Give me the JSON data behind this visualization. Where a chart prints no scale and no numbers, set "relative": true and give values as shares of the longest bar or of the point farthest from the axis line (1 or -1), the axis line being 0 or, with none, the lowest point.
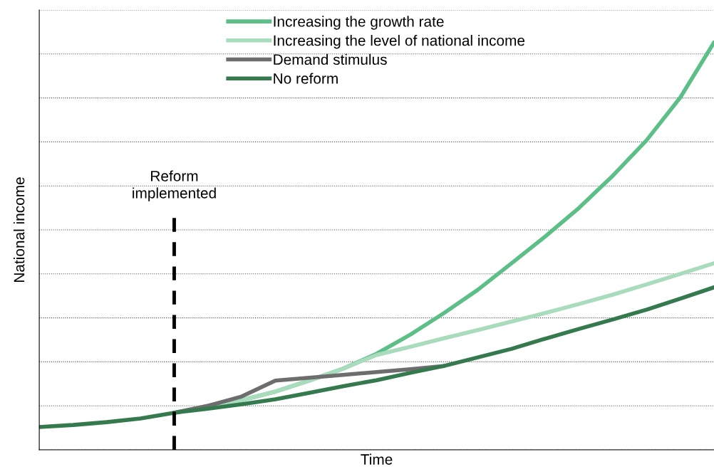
{
  "chart_data": {
    "type": "line",
    "relative": true,
    "xlabel": "Time",
    "ylabel": "National income",
    "categories": [
      null,
      null,
      null,
      null,
      null,
      null,
      null,
      null,
      null,
      null,
      null,
      null,
      null,
      null,
      null,
      null,
      null,
      null,
      null,
      null,
      null
    ],
    "series": [
      {
        "name": "Increasing the growth rate",
        "color": "#5dbf88",
        "values": [
          null,
          null,
          null,
          null,
          0.091,
          0.108,
          0.122,
          0.143,
          0.17,
          0.199,
          0.236,
          0.283,
          0.336,
          0.393,
          0.458,
          0.524,
          0.594,
          0.673,
          0.76,
          0.865,
          1
        ]
      },
      {
        "name": "Increasing the level of national income",
        "color": "#a8dcbc",
        "values": [
          null,
          null,
          null,
          null,
          0.091,
          0.108,
          0.122,
          0.143,
          0.17,
          0.199,
          0.233,
          0.253,
          0.274,
          0.294,
          0.315,
          0.336,
          0.358,
          0.381,
          0.406,
          0.432,
          0.458
        ]
      },
      {
        "name": "Demand stimulus",
        "color": "#6d6d6d",
        "values": [
          null,
          null,
          null,
          null,
          0.091,
          0.108,
          0.131,
          0.17,
          0.177,
          0.184,
          0.191,
          0.198,
          0.206,
          null,
          null,
          null,
          null,
          null,
          null,
          null,
          null
        ]
      },
      {
        "name": "No reform",
        "color": "#357a4f",
        "values": [
          0.056,
          0.061,
          0.068,
          0.077,
          0.091,
          0.101,
          0.112,
          0.124,
          0.14,
          0.156,
          0.171,
          0.189,
          0.206,
          0.227,
          0.248,
          0.273,
          0.297,
          0.32,
          0.344,
          0.371,
          0.399
        ]
      }
    ],
    "annotations": [
      "Reform implemented"
    ],
    "grid": "y",
    "legend": "top",
    "marker": "none",
    "line_style": "solid",
    "tick_labels": false
  }
}
